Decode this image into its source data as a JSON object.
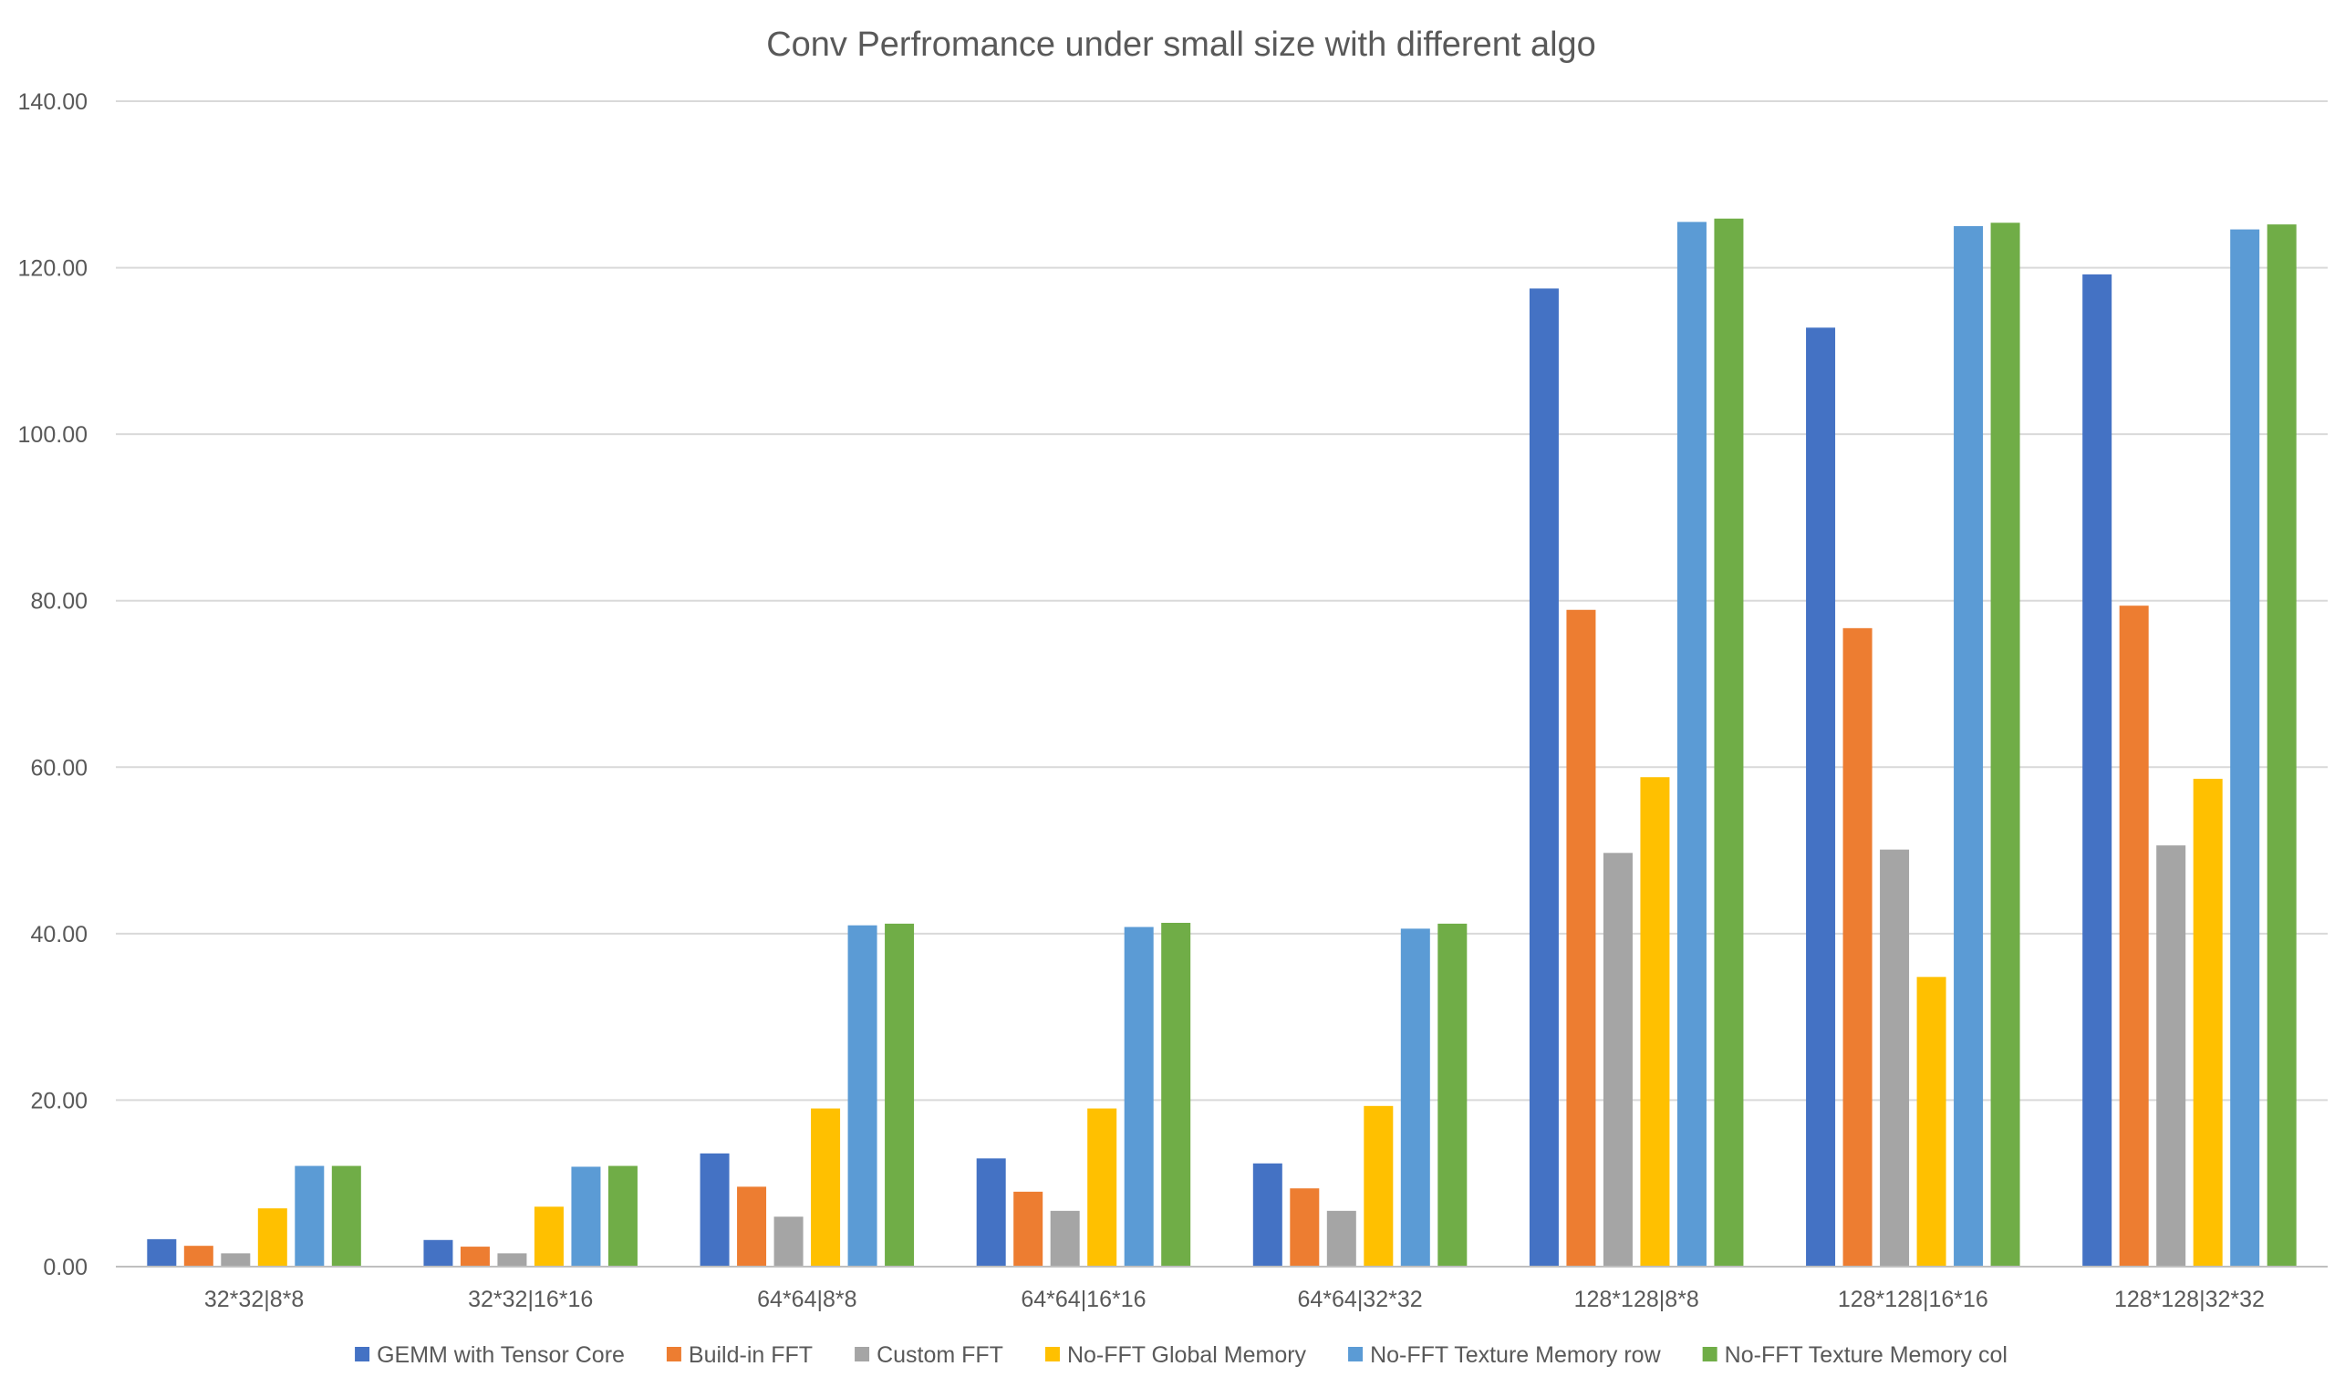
{
  "chart_data": {
    "type": "bar",
    "title": "Conv Perfromance under small size with different algo",
    "xlabel": "",
    "ylabel": "",
    "ylim": [
      0,
      140
    ],
    "yticks": [
      "0.00",
      "20.00",
      "40.00",
      "60.00",
      "80.00",
      "100.00",
      "120.00",
      "140.00"
    ],
    "grid": true,
    "legend_position": "bottom",
    "categories": [
      "32*32|8*8",
      "32*32|16*16",
      "64*64|8*8",
      "64*64|16*16",
      "64*64|32*32",
      "128*128|8*8",
      "128*128|16*16",
      "128*128|32*32"
    ],
    "series": [
      {
        "name": "GEMM with Tensor Core",
        "color": "#4472C4",
        "values": [
          3.3,
          3.2,
          13.6,
          13.0,
          12.4,
          117.5,
          112.8,
          119.2
        ]
      },
      {
        "name": "Build-in FFT",
        "color": "#ED7D31",
        "values": [
          2.5,
          2.4,
          9.6,
          9.0,
          9.4,
          78.9,
          76.7,
          79.4
        ]
      },
      {
        "name": "Custom FFT",
        "color": "#A5A5A5",
        "values": [
          1.6,
          1.6,
          6.0,
          6.7,
          6.7,
          49.7,
          50.1,
          50.6
        ]
      },
      {
        "name": "No-FFT Global Memory",
        "color": "#FFC000",
        "values": [
          7.0,
          7.2,
          19.0,
          19.0,
          19.3,
          58.8,
          34.8,
          58.6
        ]
      },
      {
        "name": "No-FFT Texture Memory row",
        "color": "#5B9BD5",
        "values": [
          12.1,
          12.0,
          41.0,
          40.8,
          40.6,
          125.5,
          125.0,
          124.6
        ]
      },
      {
        "name": "No-FFT Texture Memory col",
        "color": "#70AD47",
        "values": [
          12.1,
          12.1,
          41.2,
          41.3,
          41.2,
          125.9,
          125.4,
          125.2
        ]
      }
    ]
  }
}
